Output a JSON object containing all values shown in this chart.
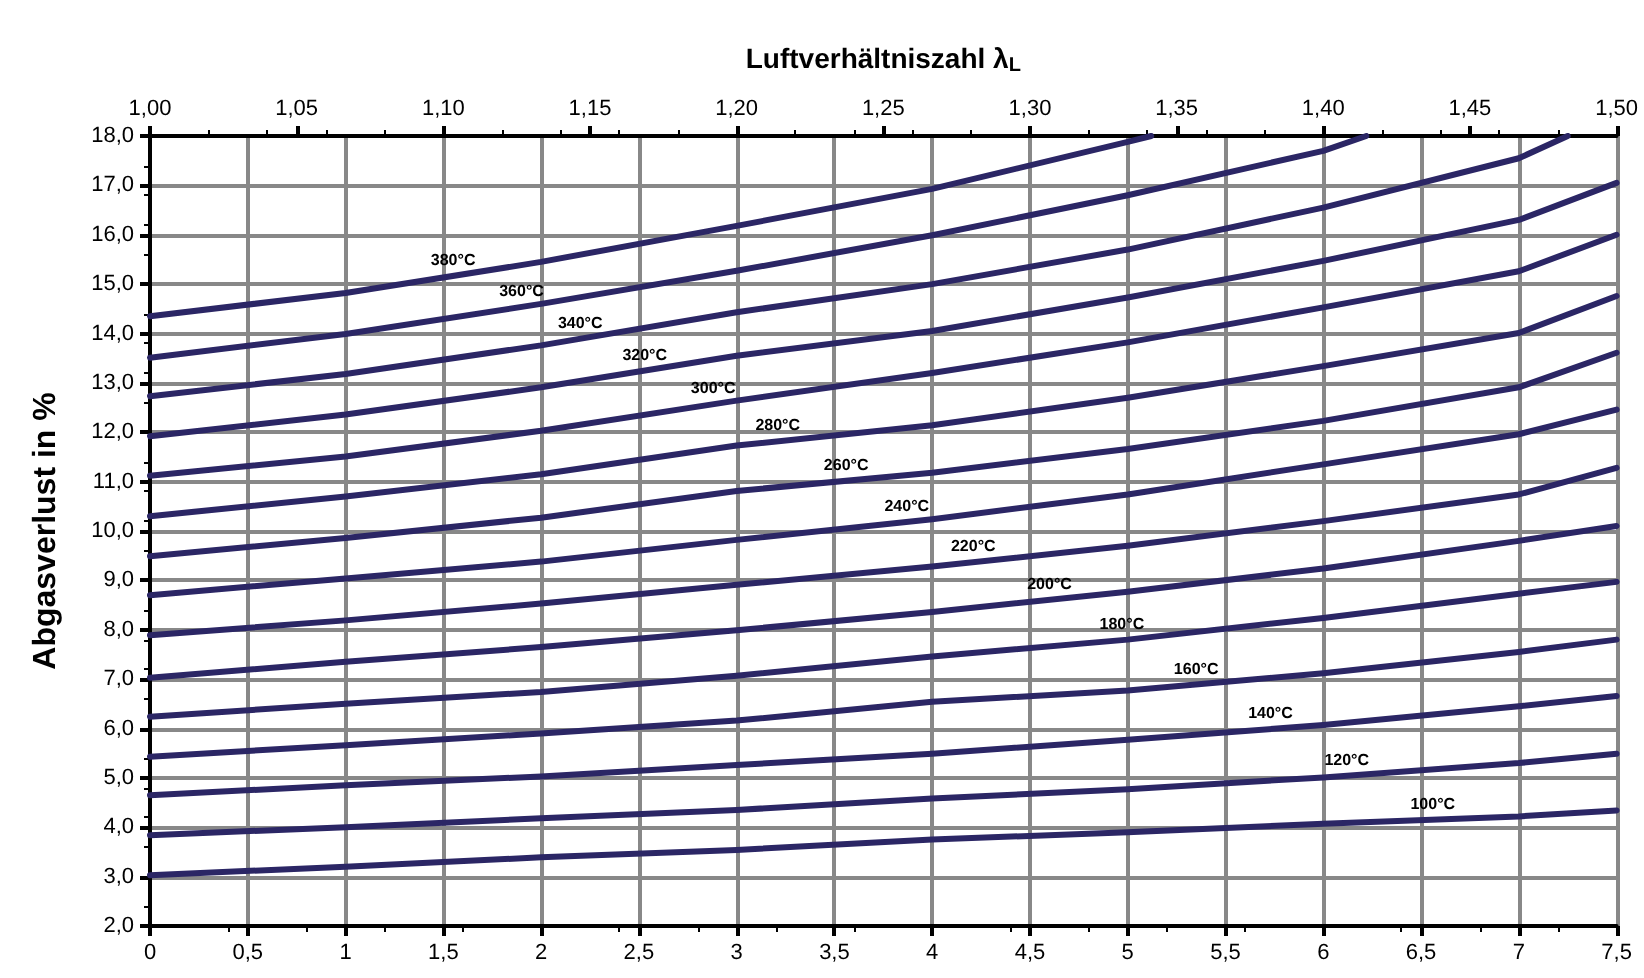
{
  "chart_data": {
    "type": "line",
    "x2label": "Luftverhältniszahl λ$_{L}$",
    "ylabel": "Abgasverlust in %",
    "xlim": [
      0,
      7.5
    ],
    "xticks": [
      0,
      {
        "value": 0.5,
        "label": "0,5"
      },
      1,
      {
        "value": 1.5,
        "label": "1,5"
      },
      2,
      {
        "value": 2.5,
        "label": "2,5"
      },
      3,
      {
        "value": 3.5,
        "label": "3,5"
      },
      4,
      {
        "value": 4.5,
        "label": "4,5"
      },
      5,
      {
        "value": 5.5,
        "label": "5,5"
      },
      6,
      {
        "value": 6.5,
        "label": "6,5"
      },
      7,
      {
        "value": 7.5,
        "label": "7,5"
      }
    ],
    "x2lim": [
      1.0,
      1.5
    ],
    "x2ticks": [
      {
        "value": 1.0,
        "label": "1,00"
      },
      {
        "value": 1.05,
        "label": "1,05"
      },
      {
        "value": 1.1,
        "label": "1,10"
      },
      {
        "value": 1.15,
        "label": "1,15"
      },
      {
        "value": 1.2,
        "label": "1,20"
      },
      {
        "value": 1.25,
        "label": "1,25"
      },
      {
        "value": 1.3,
        "label": "1,30"
      },
      {
        "value": 1.35,
        "label": "1,35"
      },
      {
        "value": 1.4,
        "label": "1,40"
      },
      {
        "value": 1.45,
        "label": "1,45"
      },
      {
        "value": 1.5,
        "label": "1,50"
      }
    ],
    "ylim": [
      2,
      18
    ],
    "yticks": [
      {
        "value": 2,
        "label": "2,0"
      },
      {
        "value": 3,
        "label": "3,0"
      },
      {
        "value": 4,
        "label": "4,0"
      },
      {
        "value": 5,
        "label": "5,0"
      },
      {
        "value": 6,
        "label": "6,0"
      },
      {
        "value": 7,
        "label": "7,0"
      },
      {
        "value": 8,
        "label": "8,0"
      },
      {
        "value": 9,
        "label": "9,0"
      },
      {
        "value": 10,
        "label": "10,0"
      },
      {
        "value": 11,
        "label": "11,0"
      },
      {
        "value": 12,
        "label": "12,0"
      },
      {
        "value": 13,
        "label": "13,0"
      },
      {
        "value": 14,
        "label": "14,0"
      },
      {
        "value": 15,
        "label": "15,0"
      },
      {
        "value": 16,
        "label": "16,0"
      },
      {
        "value": 17,
        "label": "17,0"
      },
      {
        "value": 18,
        "label": "18,0"
      }
    ],
    "grid": true,
    "marker": "none",
    "line_style": "solid",
    "series": [
      {
        "color": "#2b2665",
        "x": [
          0,
          1,
          2,
          3,
          4,
          5,
          5.12
        ],
        "values": [
          14.35,
          14.82,
          15.45,
          16.18,
          16.93,
          17.88,
          18.0
        ]
      },
      {
        "color": "#2b2665",
        "x": [
          0,
          1,
          2,
          3,
          4,
          5,
          6,
          6.22
        ],
        "values": [
          13.51,
          13.99,
          14.6,
          15.27,
          15.99,
          16.8,
          17.7,
          18.0
        ]
      },
      {
        "color": "#2b2665",
        "x": [
          0,
          1,
          2,
          3,
          4,
          5,
          6,
          7,
          7.25
        ],
        "values": [
          12.73,
          13.18,
          13.76,
          14.43,
          15.0,
          15.7,
          16.55,
          17.55,
          18.0
        ]
      },
      {
        "color": "#2b2665",
        "x": [
          0,
          1,
          2,
          3,
          4,
          5,
          6,
          7,
          7.5
        ],
        "values": [
          11.92,
          12.36,
          12.91,
          13.55,
          14.05,
          14.73,
          15.47,
          16.3,
          17.05
        ]
      },
      {
        "color": "#2b2665",
        "x": [
          0,
          1,
          2,
          3,
          4,
          5,
          6,
          7,
          7.5
        ],
        "values": [
          11.12,
          11.51,
          12.03,
          12.64,
          13.2,
          13.82,
          14.53,
          15.26,
          16.0
        ]
      },
      {
        "color": "#2b2665",
        "x": [
          0,
          1,
          2,
          3,
          4,
          5,
          6,
          7,
          7.5
        ],
        "values": [
          10.3,
          10.7,
          11.15,
          11.73,
          12.14,
          12.7,
          13.34,
          14.01,
          14.76
        ]
      },
      {
        "color": "#2b2665",
        "x": [
          0,
          1,
          2,
          3,
          4,
          5,
          6,
          7,
          7.5
        ],
        "values": [
          9.49,
          9.86,
          10.27,
          10.81,
          11.18,
          11.66,
          12.23,
          12.91,
          13.61
        ]
      },
      {
        "color": "#2b2665",
        "x": [
          0,
          1,
          2,
          3,
          4,
          5,
          6,
          7,
          7.5
        ],
        "values": [
          8.7,
          9.04,
          9.38,
          9.82,
          10.24,
          10.74,
          11.35,
          11.96,
          12.46
        ]
      },
      {
        "color": "#2b2665",
        "x": [
          0,
          1,
          2,
          3,
          4,
          5,
          6,
          7,
          7.5
        ],
        "values": [
          7.89,
          8.19,
          8.53,
          8.91,
          9.28,
          9.7,
          10.2,
          10.74,
          11.28
        ]
      },
      {
        "color": "#2b2665",
        "x": [
          0,
          1,
          2,
          3,
          4,
          5,
          6,
          7,
          7.5
        ],
        "values": [
          7.03,
          7.35,
          7.65,
          7.99,
          8.36,
          8.77,
          9.24,
          9.8,
          10.1
        ]
      },
      {
        "color": "#2b2665",
        "x": [
          0,
          1,
          2,
          3,
          4,
          5,
          6,
          7,
          7.5
        ],
        "values": [
          6.24,
          6.5,
          6.74,
          7.07,
          7.46,
          7.8,
          8.24,
          8.73,
          8.97
        ]
      },
      {
        "color": "#2b2665",
        "x": [
          0,
          1,
          2,
          3,
          4,
          5,
          6,
          7,
          7.5
        ],
        "values": [
          5.43,
          5.66,
          5.9,
          6.16,
          6.54,
          6.77,
          7.12,
          7.55,
          7.8
        ]
      },
      {
        "color": "#2b2665",
        "x": [
          0,
          1,
          2,
          3,
          4,
          5,
          6,
          7,
          7.5
        ],
        "values": [
          4.65,
          4.85,
          5.03,
          5.26,
          5.49,
          5.77,
          6.07,
          6.45,
          6.66
        ]
      },
      {
        "color": "#2b2665",
        "x": [
          0,
          1,
          2,
          3,
          4,
          5,
          6,
          7,
          7.5
        ],
        "values": [
          3.84,
          4.0,
          4.18,
          4.35,
          4.58,
          4.77,
          5.01,
          5.3,
          5.49
        ]
      },
      {
        "color": "#2b2665",
        "x": [
          0,
          1,
          2,
          3,
          4,
          5,
          6,
          7,
          7.5
        ],
        "values": [
          3.03,
          3.2,
          3.39,
          3.54,
          3.75,
          3.9,
          4.07,
          4.22,
          4.34
        ]
      }
    ],
    "annotations": [
      {
        "text": "380°C",
        "x": 1.55,
        "y": 15.17
      },
      {
        "text": "360°C",
        "x": 1.9,
        "y": 14.54
      },
      {
        "text": "340°C",
        "x": 2.2,
        "y": 13.89
      },
      {
        "text": "320°C",
        "x": 2.53,
        "y": 13.25
      },
      {
        "text": "300°C",
        "x": 2.88,
        "y": 12.57
      },
      {
        "text": "280°C",
        "x": 3.21,
        "y": 11.82
      },
      {
        "text": "260°C",
        "x": 3.56,
        "y": 11.02
      },
      {
        "text": "240°C",
        "x": 3.87,
        "y": 10.19
      },
      {
        "text": "220°C",
        "x": 4.21,
        "y": 9.37
      },
      {
        "text": "200°C",
        "x": 4.6,
        "y": 8.61
      },
      {
        "text": "180°C",
        "x": 4.97,
        "y": 7.79
      },
      {
        "text": "160°C",
        "x": 5.35,
        "y": 6.89
      },
      {
        "text": "140°C",
        "x": 5.73,
        "y": 5.99
      },
      {
        "text": "120°C",
        "x": 6.12,
        "y": 5.04
      },
      {
        "text": "100°C",
        "x": 6.56,
        "y": 4.15
      }
    ]
  }
}
